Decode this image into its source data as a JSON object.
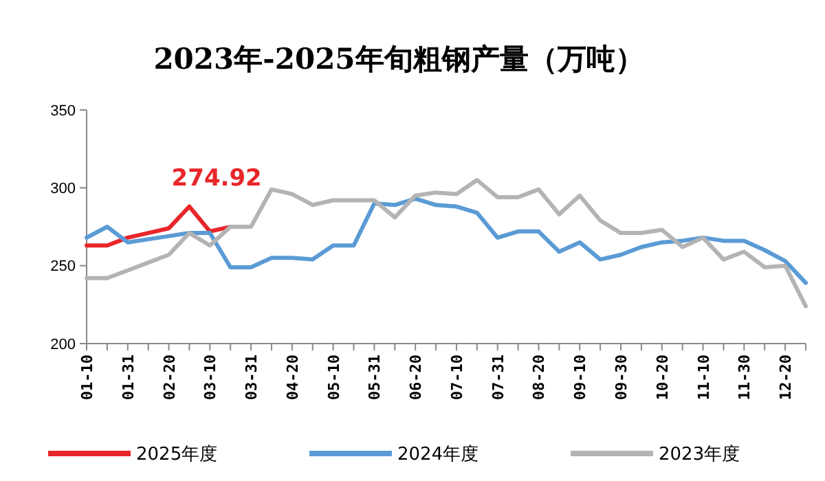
{
  "chart_data": {
    "type": "line",
    "title": "2023年-2025年旬粗钢产量（万吨）",
    "categories": [
      "01-10",
      null,
      "01-31",
      null,
      "02-20",
      null,
      "03-10",
      null,
      "03-31",
      null,
      "04-20",
      null,
      "05-10",
      null,
      "05-31",
      null,
      "06-20",
      null,
      "07-10",
      null,
      "07-31",
      null,
      "08-20",
      null,
      "09-10",
      null,
      "09-30",
      null,
      "10-20",
      null,
      "11-10",
      null,
      "11-30",
      null,
      "12-20",
      null
    ],
    "series": [
      {
        "name": "2025年度",
        "color": "#e8262a",
        "values": [
          263,
          263,
          268,
          271,
          274,
          288,
          272,
          274.92,
          null,
          null,
          null,
          null,
          null,
          null,
          null,
          null,
          null,
          null,
          null,
          null,
          null,
          null,
          null,
          null,
          null,
          null,
          null,
          null,
          null,
          null,
          null,
          null,
          null,
          null,
          null,
          null
        ],
        "value_labels": [
          null,
          null,
          null,
          null,
          null,
          null,
          null,
          "274.92",
          null,
          null,
          null,
          null,
          null,
          null,
          null,
          null,
          null,
          null,
          null,
          null,
          null,
          null,
          null,
          null,
          null,
          null,
          null,
          null,
          null,
          null,
          null,
          null,
          null,
          null,
          null,
          null
        ]
      },
      {
        "name": "2024年度",
        "color": "#5b9bd5",
        "values": [
          268,
          275,
          265,
          267,
          269,
          271,
          271,
          249,
          249,
          255,
          255,
          254,
          263,
          263,
          290,
          289,
          293,
          289,
          288,
          284,
          268,
          272,
          272,
          259,
          265,
          254,
          257,
          262,
          265,
          266,
          268,
          266,
          266,
          260,
          253,
          239
        ]
      },
      {
        "name": "2023年度",
        "color": "#b4b4b4",
        "values": [
          242,
          242,
          247,
          252,
          257,
          271,
          263,
          275,
          275,
          299,
          296,
          289,
          292,
          292,
          292,
          281,
          295,
          297,
          296,
          305,
          294,
          294,
          299,
          283,
          295,
          279,
          271,
          271,
          273,
          262,
          268,
          254,
          259,
          249,
          250,
          224
        ]
      }
    ],
    "ylim": [
      200,
      350
    ],
    "yticks": [
      200,
      250,
      300,
      350
    ],
    "legend": "bottom",
    "grid": false,
    "marker": "none",
    "line_style": "solid"
  }
}
